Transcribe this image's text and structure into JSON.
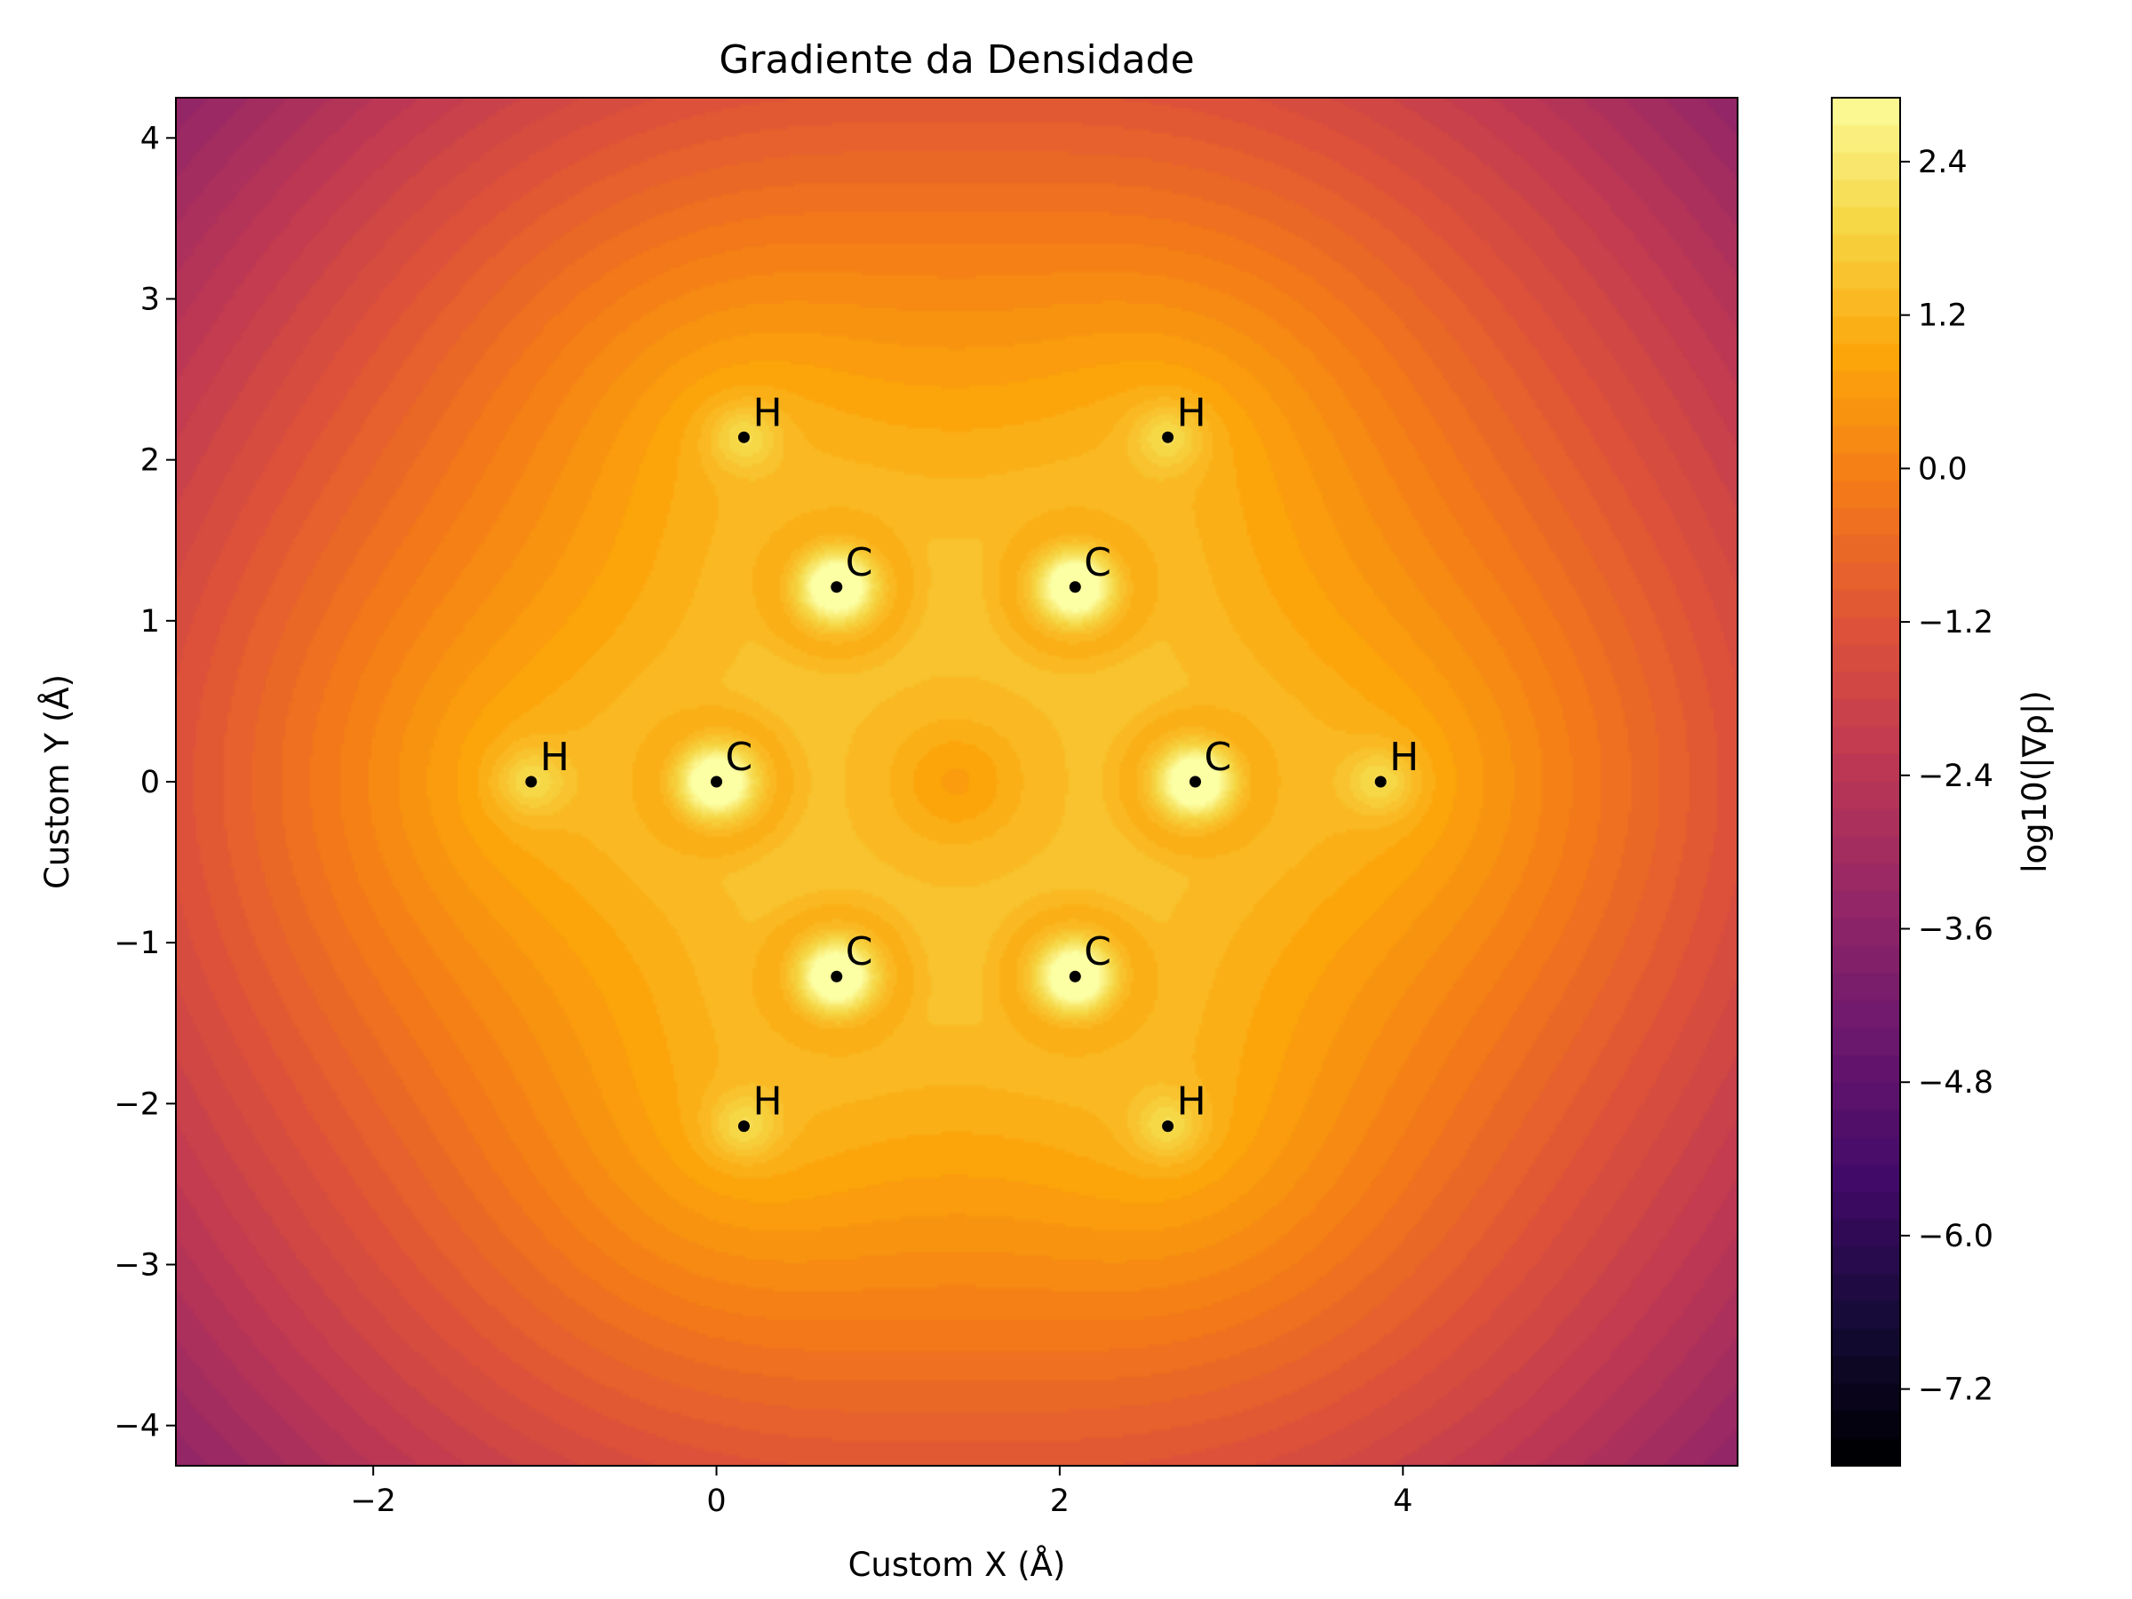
{
  "chart_data": {
    "type": "heatmap",
    "title": "Gradiente da Densidade",
    "xlabel": "Custom X (Å)",
    "ylabel": "Custom Y (Å)",
    "xlim": [
      -3.15,
      5.95
    ],
    "ylim": [
      -4.25,
      4.25
    ],
    "xticks": [
      -2,
      0,
      2,
      4
    ],
    "xtick_labels": [
      "−2",
      "0",
      "2",
      "4"
    ],
    "yticks": [
      -4,
      -3,
      -2,
      -1,
      0,
      1,
      2,
      3,
      4
    ],
    "ytick_labels": [
      "−4",
      "−3",
      "−2",
      "−1",
      "0",
      "1",
      "2",
      "3",
      "4"
    ],
    "colormap": "inferno",
    "colorbar": {
      "label": "log10(|∇ρ|)",
      "range": [
        -7.8,
        2.9
      ],
      "ticks": [
        2.4,
        1.2,
        0.0,
        -1.2,
        -2.4,
        -3.6,
        -4.8,
        -6.0,
        -7.2
      ],
      "tick_labels": [
        "2.4",
        "1.2",
        "0.0",
        "−1.2",
        "−2.4",
        "−3.6",
        "−4.8",
        "−6.0",
        "−7.2"
      ]
    },
    "grid": false,
    "atoms": [
      {
        "element": "C",
        "x": 0.0,
        "y": 0.0
      },
      {
        "element": "C",
        "x": 0.7,
        "y": 1.21
      },
      {
        "element": "C",
        "x": 2.09,
        "y": 1.21
      },
      {
        "element": "C",
        "x": 2.79,
        "y": 0.0
      },
      {
        "element": "C",
        "x": 2.09,
        "y": -1.21
      },
      {
        "element": "C",
        "x": 0.7,
        "y": -1.21
      },
      {
        "element": "H",
        "x": 0.16,
        "y": 2.14
      },
      {
        "element": "H",
        "x": 2.63,
        "y": 2.14
      },
      {
        "element": "H",
        "x": -1.08,
        "y": 0.0
      },
      {
        "element": "H",
        "x": 3.87,
        "y": 0.0
      },
      {
        "element": "H",
        "x": 0.16,
        "y": -2.14
      },
      {
        "element": "H",
        "x": 2.63,
        "y": -2.14
      }
    ]
  }
}
